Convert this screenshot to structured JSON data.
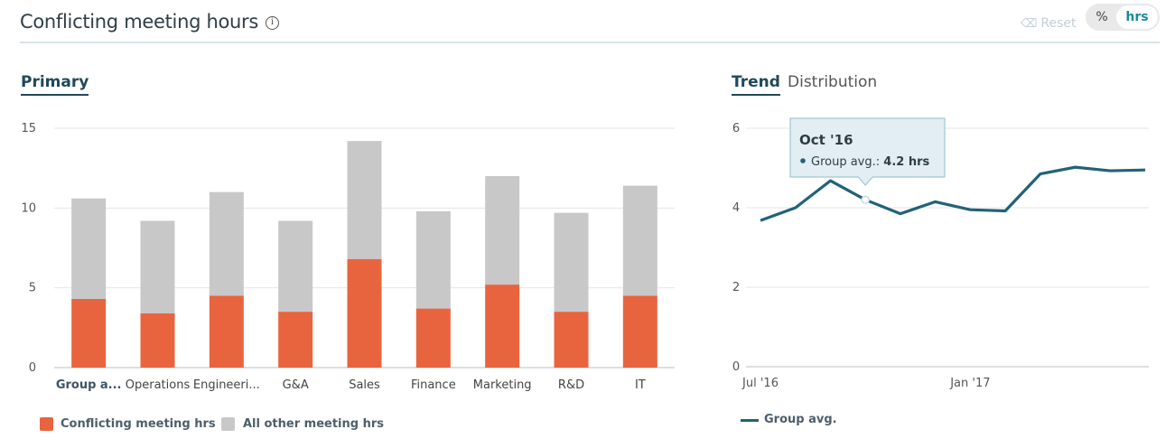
{
  "header": {
    "title": "Conflicting meeting hours",
    "info_icon": "info-icon",
    "reset_label": "Reset",
    "reset_icon": "eraser-icon",
    "toggle": {
      "percent_label": "%",
      "hours_label": "hrs",
      "selected": "hrs"
    }
  },
  "left_panel": {
    "tab_label": "Primary"
  },
  "right_panel": {
    "tabs": [
      {
        "label": "Trend",
        "active": true
      },
      {
        "label": "Distribution",
        "active": false
      }
    ]
  },
  "colors": {
    "conflicting": "#e8643f",
    "other": "#c8c8c8",
    "trend": "#226278",
    "accent": "#1a8a9c"
  },
  "chart_data": [
    {
      "type": "bar",
      "stacked": true,
      "categories": [
        "Group a...",
        "Operations",
        "Engineeri...",
        "G&A",
        "Sales",
        "Finance",
        "Marketing",
        "R&D",
        "IT"
      ],
      "selected_category": "Group a...",
      "series": [
        {
          "name": "Conflicting meeting hrs",
          "values": [
            4.3,
            3.4,
            4.5,
            3.5,
            6.8,
            3.7,
            5.2,
            3.5,
            4.5
          ]
        },
        {
          "name": "All other meeting hrs",
          "values": [
            6.3,
            5.8,
            6.5,
            5.7,
            7.4,
            6.1,
            6.8,
            6.2,
            6.9
          ]
        }
      ],
      "ylim": [
        0,
        15
      ],
      "yticks": [
        0,
        5,
        10,
        15
      ],
      "grid": true,
      "legend_placement": "bottom-left"
    },
    {
      "type": "line",
      "x": [
        "Jul '16",
        "Aug '16",
        "Sep '16",
        "Oct '16",
        "Nov '16",
        "Dec '16",
        "Jan '17",
        "Feb '17",
        "Mar '17",
        "Apr '17",
        "May '17",
        "Jun '17"
      ],
      "x_tick_labels": [
        "Jul '16",
        "Jan '17"
      ],
      "series": [
        {
          "name": "Group avg.",
          "values": [
            3.68,
            4.0,
            4.68,
            4.2,
            3.85,
            4.15,
            3.95,
            3.92,
            4.85,
            5.02,
            4.93,
            4.95
          ]
        }
      ],
      "ylim": [
        0,
        6
      ],
      "yticks": [
        0,
        2,
        4,
        6
      ],
      "grid": true,
      "legend_placement": "bottom-left",
      "tooltip": {
        "title": "Oct '16",
        "label": "Group avg.:",
        "value": "4.2 hrs"
      }
    }
  ]
}
